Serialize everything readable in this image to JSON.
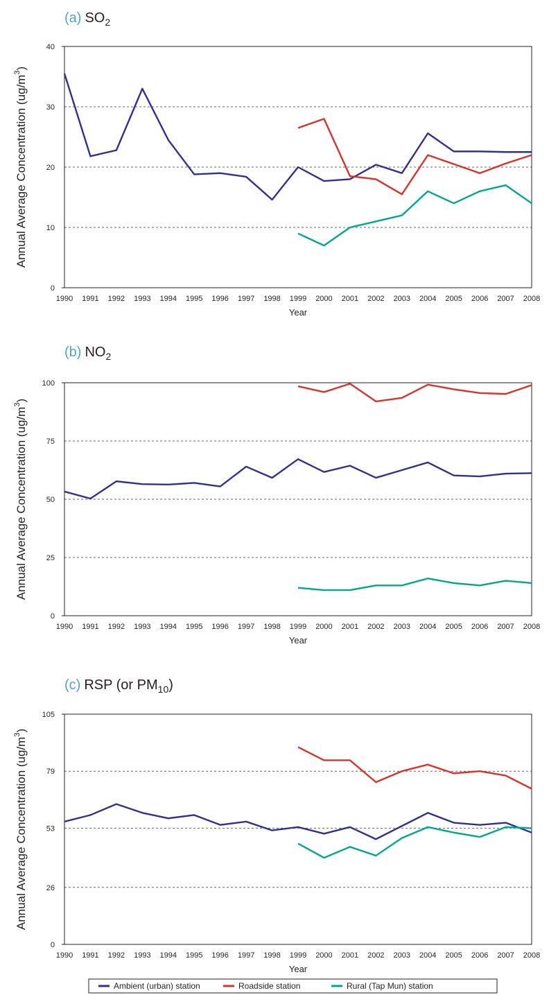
{
  "chart_data": [
    {
      "type": "line",
      "title": {
        "label": "(a)",
        "main": "SO",
        "sub": "2"
      },
      "ylabel": {
        "main": "Annual Average Concentration (ug/m",
        "sup": "3",
        "after": ")"
      },
      "xlabel": "Year",
      "categories": [
        "1990",
        "1991",
        "1992",
        "1993",
        "1994",
        "1995",
        "1996",
        "1997",
        "1998",
        "1999",
        "2000",
        "2001",
        "2002",
        "2003",
        "2004",
        "2005",
        "2006",
        "2007",
        "2008"
      ],
      "ylim": [
        0,
        40
      ],
      "yticks": [
        0,
        10,
        20,
        30,
        40
      ],
      "grid": true,
      "title_label_color": "#4ba3da",
      "series": [
        {
          "color": "#2e3192",
          "values": [
            35.5,
            21.8,
            22.8,
            33,
            24.5,
            18.8,
            19,
            18.4,
            14.6,
            20,
            17.7,
            18,
            20.4,
            19,
            25.6,
            22.6,
            22.6,
            22.5,
            22.5
          ]
        },
        {
          "color": "#d7332a",
          "values": [
            null,
            null,
            null,
            null,
            null,
            null,
            null,
            null,
            null,
            26.5,
            28,
            18.5,
            18,
            15.5,
            22,
            20.5,
            19,
            20.6,
            22
          ]
        },
        {
          "color": "#00a88a",
          "values": [
            null,
            null,
            null,
            null,
            null,
            null,
            null,
            null,
            null,
            9,
            7,
            10,
            11,
            12,
            16,
            14,
            16,
            17,
            14
          ]
        }
      ]
    },
    {
      "type": "line",
      "title": {
        "label": "(b)",
        "main": "NO",
        "sub": "2"
      },
      "ylabel": {
        "main": "Annual Average Concentration (ug/m",
        "sup": "3",
        "after": ")"
      },
      "xlabel": "Year",
      "categories": [
        "1990",
        "1991",
        "1992",
        "1993",
        "1994",
        "1995",
        "1996",
        "1997",
        "1998",
        "1999",
        "2000",
        "2001",
        "2002",
        "2003",
        "2004",
        "2005",
        "2006",
        "2007",
        "2008"
      ],
      "ylim": [
        0,
        100
      ],
      "yticks": [
        0,
        25,
        50,
        75,
        100
      ],
      "grid": true,
      "title_label_color": "#4ba3da",
      "series": [
        {
          "color": "#2e3192",
          "values": [
            53.3,
            50.3,
            57.7,
            56.5,
            56.3,
            57,
            55.5,
            64,
            59.2,
            67.2,
            61.7,
            64.4,
            59.2,
            62.5,
            65.8,
            60.2,
            59.8,
            61,
            61.2
          ]
        },
        {
          "color": "#d7332a",
          "values": [
            null,
            null,
            null,
            null,
            null,
            null,
            null,
            null,
            null,
            98.5,
            96,
            99.6,
            92,
            93.5,
            99.2,
            97.2,
            95.6,
            95.2,
            99
          ]
        },
        {
          "color": "#00a88a",
          "values": [
            null,
            null,
            null,
            null,
            null,
            null,
            null,
            null,
            null,
            12,
            11,
            11,
            13,
            13,
            16,
            14,
            13,
            15,
            14
          ]
        }
      ]
    },
    {
      "type": "line",
      "title": {
        "label": "(c)",
        "main": "RSP (or PM",
        "sub": "10",
        "after": ")"
      },
      "ylabel": {
        "main": "Annual Average Concentration (ug/m",
        "sup": "3",
        "after": ")"
      },
      "xlabel": "Year",
      "categories": [
        "1990",
        "1991",
        "1992",
        "1993",
        "1994",
        "1995",
        "1996",
        "1997",
        "1998",
        "1999",
        "2000",
        "2001",
        "2002",
        "2003",
        "2004",
        "2005",
        "2006",
        "2007",
        "2008"
      ],
      "ylim": [
        0,
        105
      ],
      "yticks": [
        0,
        26,
        53,
        79,
        105
      ],
      "grid": true,
      "title_label_color": "#4ba3da",
      "series": [
        {
          "name": "Ambient (urban) station",
          "color": "#2e3192",
          "values": [
            56,
            59,
            64,
            60,
            57.5,
            59,
            54.5,
            56,
            52,
            53.5,
            50.5,
            53.5,
            48,
            54,
            60,
            55.5,
            54.5,
            55.5,
            51
          ]
        },
        {
          "name": "Roadside station",
          "color": "#d7332a",
          "values": [
            null,
            null,
            null,
            null,
            null,
            null,
            null,
            null,
            null,
            90,
            84,
            84,
            74,
            79,
            82,
            78,
            79,
            77,
            71
          ]
        },
        {
          "name": "Rural (Tap Mun) station",
          "color": "#00a88a",
          "values": [
            null,
            null,
            null,
            null,
            null,
            null,
            null,
            null,
            null,
            46,
            39.5,
            44.5,
            40.5,
            48.5,
            53.5,
            51,
            49,
            53.5,
            53
          ]
        }
      ]
    }
  ]
}
